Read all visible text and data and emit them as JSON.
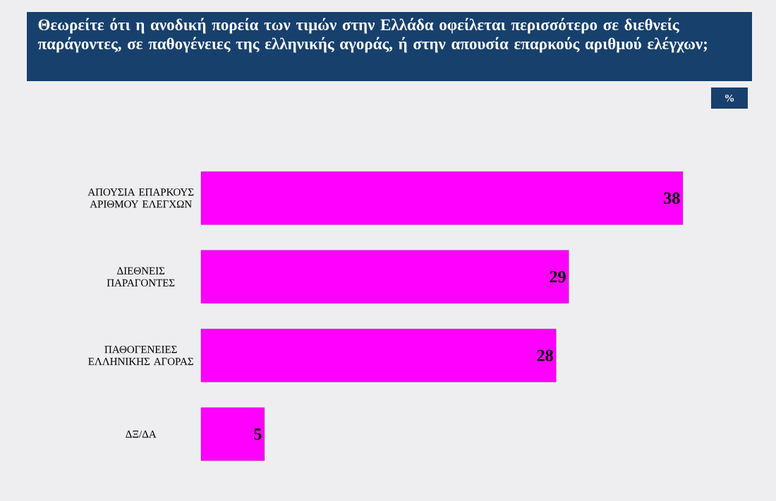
{
  "chart_data": {
    "type": "bar",
    "orientation": "horizontal",
    "title": "Θεωρείτε ότι η ανοδική πορεία των τιμών στην Ελλάδα οφείλεται περισσότερο σε διεθνείς παράγοντες, σε παθογένειες της ελληνικής αγοράς, ή στην απουσία επαρκούς αριθμού ελέγχων;",
    "categories": [
      "ΑΠΟΥΣΙΑ ΕΠΑΡΚΟΥΣ ΑΡΙΘΜΟΥ ΕΛΕΓΧΩΝ",
      "ΔΙΕΘΝΕΙΣ ΠΑΡΑΓΟΝΤΕΣ",
      "ΠΑΘΟΓΕΝΕΙΕΣ ΕΛΛΗΝΙΚΗΣ ΑΓΟΡΑΣ",
      "ΔΞ/ΔΑ"
    ],
    "values": [
      38,
      29,
      28,
      5
    ],
    "color": "#ff00ff",
    "data_labels": true,
    "tick_labels": "y",
    "annotations": [
      "%"
    ]
  }
}
